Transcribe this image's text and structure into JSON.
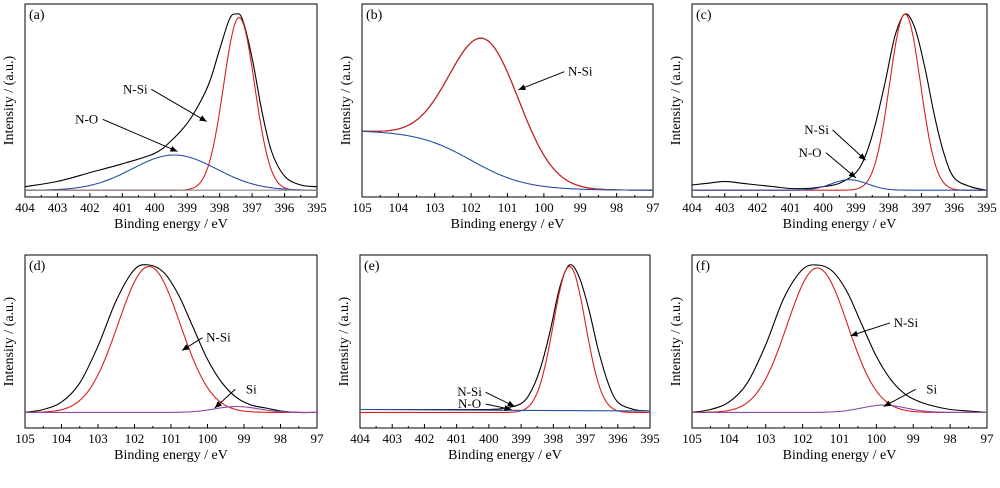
{
  "chart_data": [
    {
      "type": "line",
      "panel_label": "(a)",
      "xlabel": "Binding energy / eV",
      "ylabel": "Intensity / (a.u.)",
      "xlim": [
        404,
        395
      ],
      "xticks": [
        "404",
        "403",
        "402",
        "401",
        "400",
        "399",
        "398",
        "397",
        "396",
        "395"
      ],
      "ylim": [
        0,
        1.1
      ],
      "series": [
        {
          "color": "#000000",
          "x": [
            404,
            403,
            402,
            401,
            400,
            399.5,
            399,
            398.6,
            398.3,
            398,
            397.7,
            397.5,
            397.3,
            397,
            396.7,
            396.4,
            396,
            395.5,
            395
          ],
          "y": [
            0.02,
            0.05,
            0.1,
            0.15,
            0.21,
            0.28,
            0.38,
            0.5,
            0.62,
            0.8,
            0.97,
            1.0,
            0.97,
            0.75,
            0.45,
            0.22,
            0.08,
            0.03,
            0.02
          ]
        },
        {
          "color": "#d62020",
          "peak": {
            "center": 397.4,
            "height": 0.98,
            "sigma": 0.48
          }
        },
        {
          "color": "#2a4fa3",
          "peak": {
            "center": 399.4,
            "height": 0.2,
            "sigma": 1.3
          }
        },
        {
          "color": "#888888",
          "x": [
            404,
            395
          ],
          "y": [
            0.0,
            0.0
          ]
        }
      ],
      "annotations": [
        {
          "text": "N-Si",
          "label_at": [
            400.6,
            0.55
          ],
          "arrow_to": [
            398.4,
            0.39
          ]
        },
        {
          "text": "N-O",
          "label_at": [
            402.1,
            0.38
          ],
          "arrow_to": [
            399.3,
            0.22
          ]
        }
      ]
    },
    {
      "type": "line",
      "panel_label": "(b)",
      "xlabel": "Binding energy / eV",
      "ylabel": "Intensity / (a.u.)",
      "xlim": [
        105,
        97
      ],
      "xticks": [
        "105",
        "104",
        "103",
        "102",
        "101",
        "100",
        "99",
        "98",
        "97"
      ],
      "ylim": [
        0,
        1.05
      ],
      "series": [
        {
          "color": "#000000",
          "peak": {
            "center": 101.6,
            "height": 0.73,
            "sigma": 0.95
          },
          "background": {
            "left": 0.34,
            "right": 0.0,
            "center": 102.0,
            "width": 0.75
          }
        },
        {
          "color": "#d62020",
          "peak": {
            "center": 101.6,
            "height": 0.73,
            "sigma": 0.95
          },
          "background": {
            "left": 0.34,
            "right": 0.0,
            "center": 102.0,
            "width": 0.75
          }
        },
        {
          "color": "#2a4fa3",
          "background": {
            "left": 0.34,
            "right": 0.0,
            "center": 102.0,
            "width": 0.75
          }
        }
      ],
      "annotations": [
        {
          "text": "N-Si",
          "label_at": [
            99.0,
            0.65
          ],
          "arrow_to": [
            100.7,
            0.57
          ]
        }
      ]
    },
    {
      "type": "line",
      "panel_label": "(c)",
      "xlabel": "Binding energy / eV",
      "ylabel": "Intensity / (a.u.)",
      "xlim": [
        404,
        395
      ],
      "xticks": [
        "404",
        "403",
        "402",
        "401",
        "400",
        "399",
        "398",
        "397",
        "396",
        "395"
      ],
      "ylim": [
        0,
        1.05
      ],
      "series": [
        {
          "color": "#000000",
          "x": [
            404,
            403.5,
            403,
            402.5,
            402,
            401.5,
            401,
            400.5,
            400,
            399.5,
            399,
            398.7,
            398.4,
            398.1,
            397.8,
            397.5,
            397.2,
            396.9,
            396.6,
            396.3,
            396,
            395.5,
            395
          ],
          "y": [
            0.03,
            0.04,
            0.05,
            0.04,
            0.03,
            0.02,
            0.01,
            0.01,
            0.02,
            0.04,
            0.1,
            0.2,
            0.38,
            0.62,
            0.88,
            1.0,
            0.92,
            0.7,
            0.42,
            0.2,
            0.07,
            0.02,
            0.0
          ]
        },
        {
          "color": "#d62020",
          "peak": {
            "center": 397.5,
            "height": 1.0,
            "sigma": 0.47
          }
        },
        {
          "color": "#2a4fa3",
          "peak": {
            "center": 399.2,
            "height": 0.06,
            "sigma": 0.55
          }
        }
      ],
      "annotations": [
        {
          "text": "N-Si",
          "label_at": [
            400.2,
            0.32
          ],
          "arrow_to": [
            398.7,
            0.17
          ]
        },
        {
          "text": "N-O",
          "label_at": [
            400.4,
            0.19
          ],
          "arrow_to": [
            399.0,
            0.07
          ]
        }
      ]
    },
    {
      "type": "line",
      "panel_label": "(d)",
      "xlabel": "Binding energy / eV",
      "ylabel": "Intensity / (a.u.)",
      "xlim": [
        105,
        97
      ],
      "xticks": [
        "105",
        "104",
        "103",
        "102",
        "101",
        "100",
        "99",
        "98",
        "97"
      ],
      "ylim": [
        0,
        1.05
      ],
      "series": [
        {
          "color": "#000000",
          "x": [
            105,
            104.5,
            104,
            103.5,
            103,
            102.5,
            102,
            101.6,
            101.2,
            100.8,
            100.4,
            100,
            99.6,
            99.2,
            98.8,
            98.4,
            98,
            97.5,
            97
          ],
          "y": [
            0.0,
            0.02,
            0.07,
            0.2,
            0.45,
            0.76,
            0.97,
            1.0,
            0.95,
            0.8,
            0.58,
            0.36,
            0.2,
            0.1,
            0.05,
            0.03,
            0.01,
            0.0,
            0.0
          ]
        },
        {
          "color": "#d62020",
          "peak": {
            "center": 101.6,
            "height": 0.99,
            "sigma": 0.85
          }
        },
        {
          "color": "#8e4aa8",
          "peak": {
            "center": 99.2,
            "height": 0.04,
            "sigma": 0.6
          }
        }
      ],
      "annotations": [
        {
          "text": "N-Si",
          "label_at": [
            99.7,
            0.48
          ],
          "arrow_to": [
            100.7,
            0.42
          ]
        },
        {
          "text": "Si",
          "label_at": [
            98.8,
            0.13
          ],
          "arrow_to": [
            99.8,
            0.03
          ]
        }
      ]
    },
    {
      "type": "line",
      "panel_label": "(e)",
      "xlabel": "Binding energy / eV",
      "ylabel": "Intensity / (a.u.)",
      "xlim": [
        404,
        395
      ],
      "xticks": [
        "404",
        "403",
        "402",
        "401",
        "400",
        "399",
        "398",
        "397",
        "396",
        "395"
      ],
      "ylim": [
        0,
        1.05
      ],
      "series": [
        {
          "color": "#000000",
          "x": [
            404,
            402,
            400,
            399.5,
            399,
            398.7,
            398.4,
            398.1,
            397.8,
            397.5,
            397.2,
            396.9,
            396.6,
            396.3,
            396,
            395.5,
            395
          ],
          "y": [
            0.02,
            0.02,
            0.02,
            0.03,
            0.06,
            0.14,
            0.3,
            0.55,
            0.85,
            1.0,
            0.92,
            0.7,
            0.42,
            0.2,
            0.07,
            0.02,
            0.01
          ]
        },
        {
          "color": "#d62020",
          "peak": {
            "center": 397.5,
            "height": 0.99,
            "sigma": 0.5
          }
        },
        {
          "color": "#2a4fa3",
          "x": [
            404,
            395
          ],
          "y": [
            0.02,
            0.01
          ]
        }
      ],
      "annotations": [
        {
          "text": "N-Si",
          "label_at": [
            400.6,
            0.11
          ],
          "arrow_to": [
            399.2,
            0.04
          ]
        },
        {
          "text": "N-O",
          "label_at": [
            400.6,
            0.03
          ],
          "arrow_to": [
            399.3,
            0.02
          ]
        }
      ]
    },
    {
      "type": "line",
      "panel_label": "(f)",
      "xlabel": "Binding energy / eV",
      "ylabel": "Intensity / (a.u.)",
      "xlim": [
        105,
        97
      ],
      "xticks": [
        "105",
        "104",
        "103",
        "102",
        "101",
        "100",
        "99",
        "98",
        "97"
      ],
      "ylim": [
        0,
        1.05
      ],
      "series": [
        {
          "color": "#000000",
          "x": [
            105,
            104.5,
            104,
            103.5,
            103,
            102.5,
            102,
            101.6,
            101.2,
            100.8,
            100.4,
            100,
            99.6,
            99.2,
            98.8,
            98.4,
            98,
            97.5,
            97
          ],
          "y": [
            0.0,
            0.02,
            0.07,
            0.2,
            0.46,
            0.78,
            0.97,
            1.0,
            0.96,
            0.82,
            0.6,
            0.38,
            0.22,
            0.12,
            0.07,
            0.04,
            0.02,
            0.01,
            0.0
          ]
        },
        {
          "color": "#d62020",
          "peak": {
            "center": 101.6,
            "height": 0.98,
            "sigma": 0.82
          }
        },
        {
          "color": "#8e4aa8",
          "peak": {
            "center": 99.8,
            "height": 0.05,
            "sigma": 0.6
          }
        }
      ],
      "annotations": [
        {
          "text": "N-Si",
          "label_at": [
            99.2,
            0.58
          ],
          "arrow_to": [
            100.7,
            0.52
          ]
        },
        {
          "text": "Si",
          "label_at": [
            98.5,
            0.13
          ],
          "arrow_to": [
            99.8,
            0.04
          ]
        }
      ]
    }
  ]
}
